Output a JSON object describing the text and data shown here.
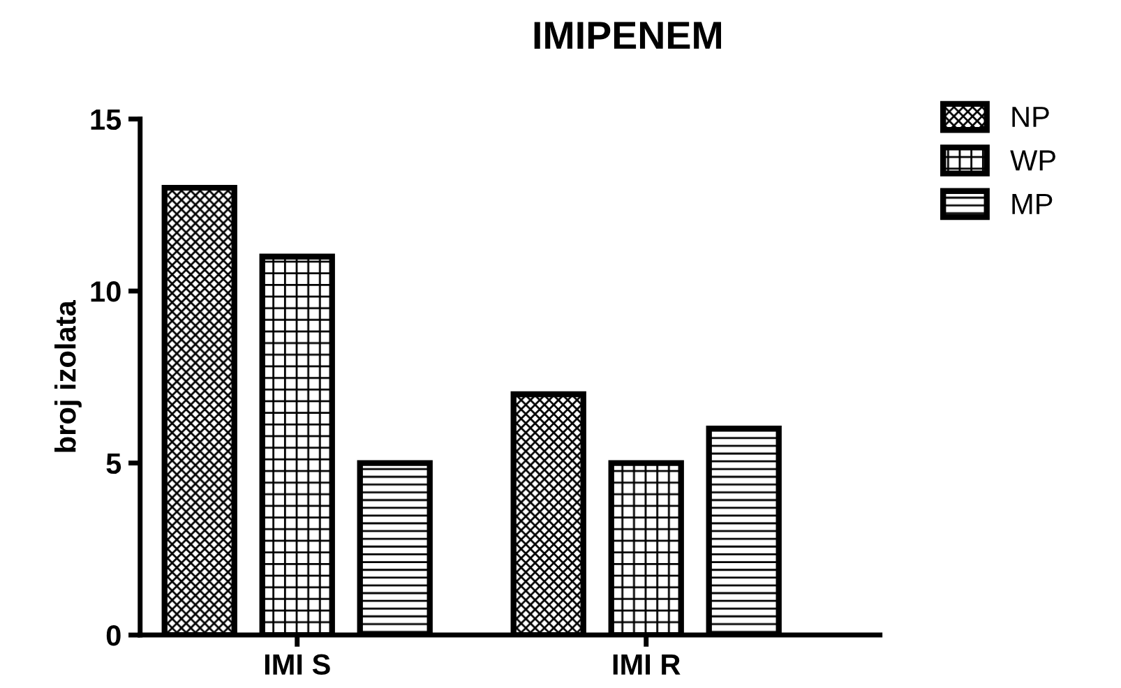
{
  "chart_data": {
    "type": "bar",
    "title": "IMIPENEM",
    "ylabel": "broj izolata",
    "categories": [
      "IMI S",
      "IMI R"
    ],
    "series": [
      {
        "name": "NP",
        "color": "#000000",
        "values": [
          13,
          7
        ]
      },
      {
        "name": "WP",
        "color": "#000000",
        "values": [
          11,
          5
        ]
      },
      {
        "name": "MP",
        "color": "#000000",
        "values": [
          5,
          6
        ]
      }
    ],
    "ylim": [
      0,
      15
    ],
    "yticks": [
      0,
      5,
      10,
      15
    ],
    "grid": false,
    "legend": "top right"
  }
}
